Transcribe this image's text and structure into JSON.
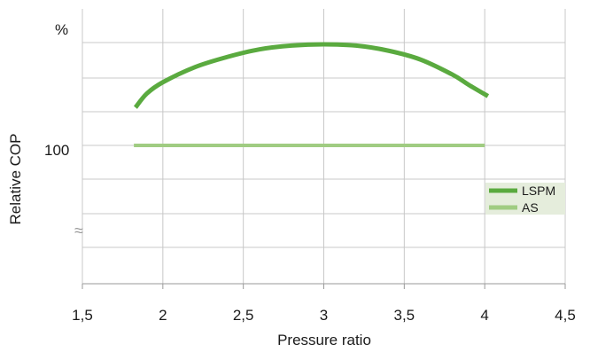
{
  "chart_data": {
    "type": "line",
    "xlabel": "Pressure ratio",
    "ylabel": "Relative COP",
    "y_unit_label": "%",
    "y_tick_label": "100",
    "axis_break_glyph": "≈",
    "xlim": [
      1.5,
      4.5
    ],
    "x_ticks": [
      "1,5",
      "2",
      "2,5",
      "3",
      "3,5",
      "4",
      "4,5"
    ],
    "grid": "vertical and horizontal",
    "legend_position": "right",
    "series": [
      {
        "name": "LSPM",
        "color": "#5aaa3f",
        "x": [
          1.83,
          1.9,
          2.0,
          2.2,
          2.4,
          2.6,
          2.8,
          3.0,
          3.2,
          3.4,
          3.6,
          3.8,
          3.9,
          4.02
        ],
        "y": [
          103.0,
          104.1,
          105.0,
          106.2,
          107.0,
          107.6,
          107.9,
          108.0,
          107.9,
          107.5,
          106.8,
          105.6,
          104.8,
          103.9
        ]
      },
      {
        "name": "AS",
        "color": "#a0cc82",
        "x": [
          1.82,
          4.0
        ],
        "y": [
          100.0,
          100.0
        ]
      }
    ]
  }
}
